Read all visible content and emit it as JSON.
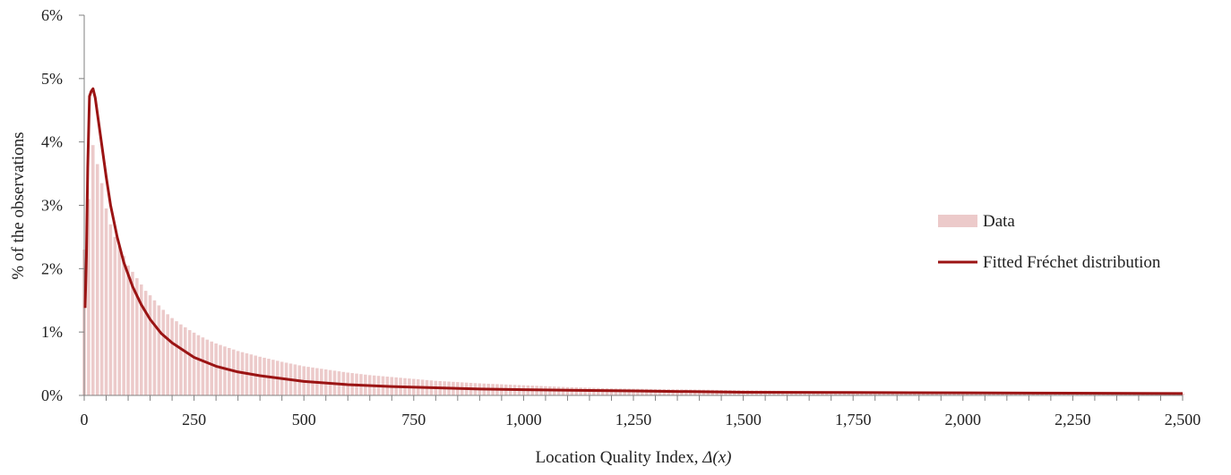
{
  "chart_data": {
    "type": "bar",
    "xlabel_prefix": "Location Quality Index, ",
    "xlabel_symbol": "Δ(x)",
    "ylabel": "% of the observations",
    "xlim": [
      0,
      2500
    ],
    "ylim": [
      0,
      6
    ],
    "y_unit": "%",
    "x_ticks": [
      {
        "value": 0,
        "label": "0"
      },
      {
        "value": 250,
        "label": "250"
      },
      {
        "value": 500,
        "label": "500"
      },
      {
        "value": 750,
        "label": "750"
      },
      {
        "value": 1000,
        "label": "1,000"
      },
      {
        "value": 1250,
        "label": "1,250"
      },
      {
        "value": 1500,
        "label": "1,500"
      },
      {
        "value": 1750,
        "label": "1,750"
      },
      {
        "value": 2000,
        "label": "2,000"
      },
      {
        "value": 2250,
        "label": "2,250"
      },
      {
        "value": 2500,
        "label": "2,500"
      }
    ],
    "y_ticks": [
      {
        "value": 0,
        "label": "0%"
      },
      {
        "value": 1,
        "label": "1%"
      },
      {
        "value": 2,
        "label": "2%"
      },
      {
        "value": 3,
        "label": "3%"
      },
      {
        "value": 4,
        "label": "4%"
      },
      {
        "value": 5,
        "label": "5%"
      },
      {
        "value": 6,
        "label": "6%"
      }
    ],
    "legend_position": "right",
    "series": [
      {
        "name": "Data",
        "type": "bar",
        "color": "#eccaca",
        "x": [
          0,
          10,
          20,
          30,
          40,
          50,
          60,
          70,
          80,
          90,
          100,
          110,
          120,
          130,
          140,
          150,
          160,
          170,
          180,
          190,
          200,
          220,
          240,
          260,
          280,
          300,
          350,
          400,
          450,
          500,
          550,
          600,
          650,
          700,
          750,
          800,
          900,
          1000,
          1100,
          1200,
          1300,
          1400,
          1500,
          1600,
          1700,
          1800,
          1900,
          2000,
          2100,
          2200,
          2300,
          2400,
          2500
        ],
        "values": [
          2.3,
          3.1,
          3.95,
          3.65,
          3.35,
          2.95,
          2.7,
          2.5,
          2.35,
          2.2,
          2.05,
          1.95,
          1.85,
          1.75,
          1.65,
          1.58,
          1.5,
          1.42,
          1.35,
          1.28,
          1.22,
          1.12,
          1.03,
          0.95,
          0.88,
          0.82,
          0.7,
          0.61,
          0.53,
          0.46,
          0.41,
          0.36,
          0.32,
          0.29,
          0.26,
          0.23,
          0.19,
          0.16,
          0.13,
          0.11,
          0.1,
          0.09,
          0.08,
          0.07,
          0.06,
          0.06,
          0.05,
          0.05,
          0.04,
          0.04,
          0.04,
          0.03,
          0.03
        ]
      },
      {
        "name": "Fitted Fréchet distribution",
        "type": "line",
        "color": "#9b1414",
        "x": [
          2,
          5,
          8,
          12,
          16,
          20,
          25,
          30,
          40,
          50,
          60,
          75,
          90,
          110,
          130,
          150,
          175,
          200,
          250,
          300,
          350,
          400,
          500,
          600,
          700,
          800,
          900,
          1000,
          1250,
          1500,
          1750,
          2000,
          2250,
          2500
        ],
        "values": [
          1.38,
          2.2,
          3.6,
          4.72,
          4.8,
          4.84,
          4.7,
          4.45,
          3.95,
          3.45,
          3.0,
          2.5,
          2.1,
          1.72,
          1.43,
          1.2,
          0.98,
          0.83,
          0.6,
          0.46,
          0.37,
          0.31,
          0.22,
          0.17,
          0.14,
          0.12,
          0.1,
          0.09,
          0.07,
          0.05,
          0.045,
          0.04,
          0.035,
          0.03
        ]
      }
    ]
  }
}
